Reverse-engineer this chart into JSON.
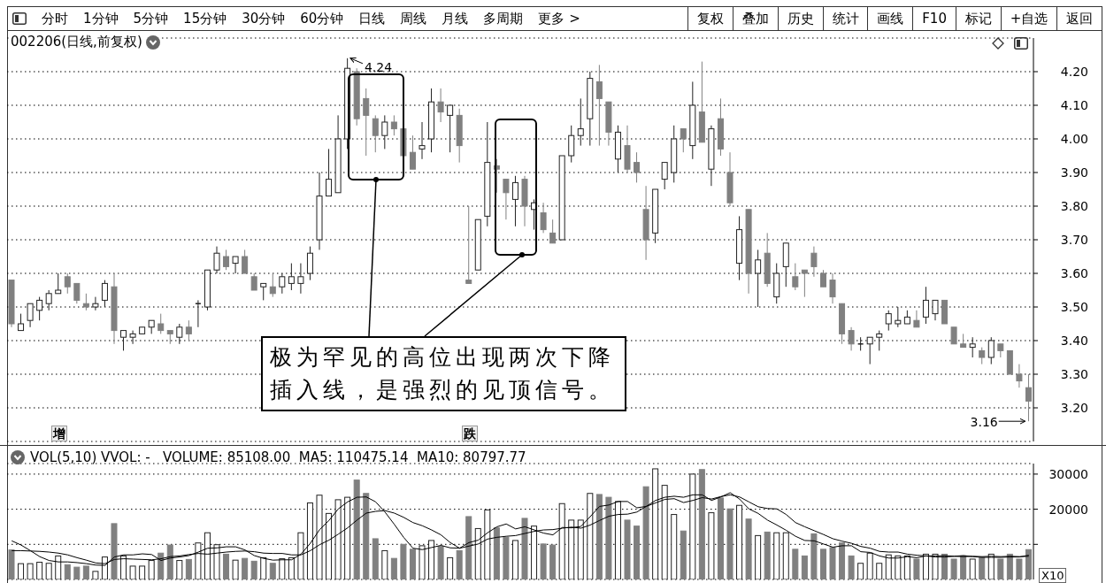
{
  "chart_data": [
    {
      "type": "other",
      "annotations": [
        "分时",
        "1分钟",
        "5分钟",
        "15分钟",
        "30分钟",
        "60分钟",
        "日线",
        "周线",
        "月线",
        "多周期",
        "更多 >"
      ]
    },
    {
      "type": "other",
      "annotations": [
        "复权",
        "叠加",
        "历史",
        "统计",
        "画线",
        "F10",
        "标记",
        "+自选",
        "返回"
      ]
    },
    {
      "type": "candlestick",
      "title": "002206(日线,前复权)",
      "categories": [
        null,
        null,
        null,
        null,
        null,
        null,
        null,
        null,
        null,
        null,
        null,
        null,
        null,
        null,
        null,
        null,
        null,
        null,
        null,
        null,
        null,
        null,
        null,
        null,
        null,
        null,
        null,
        null,
        null,
        null,
        null,
        null,
        null,
        null,
        null,
        null,
        null,
        null,
        null,
        null,
        null,
        null,
        null,
        null,
        null,
        null,
        null,
        null,
        null,
        null,
        null,
        null,
        null,
        null,
        null,
        null,
        null,
        null,
        null,
        null,
        null,
        null,
        null,
        null,
        null,
        null,
        null,
        null,
        null,
        null,
        null,
        null,
        null,
        null,
        null,
        null,
        null,
        null,
        null,
        null,
        null,
        null,
        null,
        null,
        null,
        null,
        null,
        null,
        null,
        null,
        null,
        null,
        null,
        null,
        null,
        null,
        null,
        null,
        null,
        null,
        null,
        null,
        null,
        null,
        null,
        null,
        null,
        null,
        null,
        null
      ],
      "ohlc": [
        [
          3.58,
          3.58,
          3.44,
          3.45
        ],
        [
          3.43,
          3.48,
          3.43,
          3.45
        ],
        [
          3.46,
          3.51,
          3.44,
          3.51
        ],
        [
          3.49,
          3.53,
          3.46,
          3.52
        ],
        [
          3.51,
          3.55,
          3.49,
          3.54
        ],
        [
          3.54,
          3.6,
          3.54,
          3.55
        ],
        [
          3.59,
          3.6,
          3.54,
          3.56
        ],
        [
          3.57,
          3.57,
          3.51,
          3.52
        ],
        [
          3.51,
          3.54,
          3.49,
          3.5
        ],
        [
          3.5,
          3.53,
          3.49,
          3.51
        ],
        [
          3.52,
          3.58,
          3.5,
          3.57
        ],
        [
          3.56,
          3.6,
          3.39,
          3.43
        ],
        [
          3.41,
          3.43,
          3.37,
          3.43
        ],
        [
          3.41,
          3.43,
          3.39,
          3.42
        ],
        [
          3.42,
          3.44,
          3.42,
          3.44
        ],
        [
          3.44,
          3.46,
          3.42,
          3.46
        ],
        [
          3.45,
          3.48,
          3.42,
          3.43
        ],
        [
          3.43,
          3.43,
          3.39,
          3.42
        ],
        [
          3.41,
          3.45,
          3.39,
          3.44
        ],
        [
          3.44,
          3.46,
          3.4,
          3.42
        ],
        [
          3.51,
          3.52,
          3.44,
          3.51
        ],
        [
          3.5,
          3.61,
          3.49,
          3.61
        ],
        [
          3.61,
          3.68,
          3.6,
          3.66
        ],
        [
          3.65,
          3.67,
          3.61,
          3.62
        ],
        [
          3.63,
          3.65,
          3.6,
          3.65
        ],
        [
          3.65,
          3.67,
          3.6,
          3.6
        ],
        [
          3.59,
          3.6,
          3.55,
          3.55
        ],
        [
          3.56,
          3.57,
          3.52,
          3.57
        ],
        [
          3.56,
          3.6,
          3.53,
          3.54
        ],
        [
          3.56,
          3.6,
          3.54,
          3.59
        ],
        [
          3.57,
          3.63,
          3.55,
          3.59
        ],
        [
          3.57,
          3.63,
          3.54,
          3.59
        ],
        [
          3.6,
          3.68,
          3.58,
          3.66
        ],
        [
          3.7,
          3.9,
          3.67,
          3.83
        ],
        [
          3.83,
          3.97,
          3.83,
          3.88
        ],
        [
          3.84,
          4.07,
          3.84,
          4.0
        ],
        [
          4.0,
          4.24,
          3.97,
          4.21
        ],
        [
          4.2,
          4.21,
          4.04,
          4.06
        ],
        [
          4.12,
          4.15,
          3.95,
          4.07
        ],
        [
          4.06,
          4.07,
          3.96,
          4.01
        ],
        [
          4.01,
          4.07,
          3.97,
          4.05
        ],
        [
          4.05,
          4.07,
          4.01,
          4.03
        ],
        [
          4.03,
          4.03,
          3.95,
          3.95
        ],
        [
          3.96,
          4.01,
          3.91,
          3.91
        ],
        [
          3.97,
          4.05,
          3.94,
          3.98
        ],
        [
          4.0,
          4.15,
          3.96,
          4.11
        ],
        [
          4.11,
          4.15,
          4.05,
          4.08
        ],
        [
          4.07,
          4.1,
          3.96,
          4.1
        ],
        [
          4.07,
          4.09,
          3.93,
          3.98
        ],
        [
          3.58,
          3.8,
          3.57,
          3.57
        ],
        [
          3.61,
          3.76,
          3.61,
          3.76
        ],
        [
          3.77,
          4.05,
          3.74,
          3.93
        ],
        [
          3.92,
          3.94,
          3.84,
          3.91
        ],
        [
          3.88,
          3.88,
          3.76,
          3.84
        ],
        [
          3.82,
          3.89,
          3.74,
          3.87
        ],
        [
          3.88,
          3.89,
          3.74,
          3.8
        ],
        [
          3.79,
          3.82,
          3.73,
          3.81
        ],
        [
          3.78,
          3.81,
          3.72,
          3.73
        ],
        [
          3.72,
          3.76,
          3.69,
          3.69
        ],
        [
          3.7,
          3.95,
          3.7,
          3.95
        ],
        [
          3.95,
          4.04,
          3.93,
          4.01
        ],
        [
          4.01,
          4.12,
          3.98,
          4.03
        ],
        [
          4.06,
          4.2,
          3.98,
          4.18
        ],
        [
          4.17,
          4.22,
          3.98,
          4.12
        ],
        [
          4.11,
          4.11,
          3.98,
          4.02
        ],
        [
          3.94,
          4.04,
          3.9,
          4.02
        ],
        [
          3.98,
          4.04,
          3.9,
          3.91
        ],
        [
          3.93,
          3.96,
          3.87,
          3.9
        ],
        [
          3.79,
          3.86,
          3.64,
          3.7
        ],
        [
          3.72,
          3.85,
          3.69,
          3.85
        ],
        [
          3.88,
          3.93,
          3.85,
          3.93
        ],
        [
          3.9,
          4.04,
          3.87,
          4.0
        ],
        [
          4.03,
          4.03,
          3.96,
          4.0
        ],
        [
          3.98,
          4.17,
          3.94,
          4.1
        ],
        [
          4.08,
          4.23,
          3.99,
          3.99
        ],
        [
          3.91,
          4.04,
          3.86,
          4.03
        ],
        [
          4.06,
          4.12,
          3.95,
          3.97
        ],
        [
          3.9,
          3.96,
          3.8,
          3.81
        ],
        [
          3.63,
          3.77,
          3.58,
          3.73
        ],
        [
          3.79,
          3.79,
          3.54,
          3.6
        ],
        [
          3.6,
          3.67,
          3.5,
          3.64
        ],
        [
          3.66,
          3.72,
          3.56,
          3.57
        ],
        [
          3.53,
          3.63,
          3.51,
          3.6
        ],
        [
          3.62,
          3.69,
          3.56,
          3.69
        ],
        [
          3.59,
          3.63,
          3.55,
          3.56
        ],
        [
          3.61,
          3.61,
          3.53,
          3.6
        ],
        [
          3.66,
          3.68,
          3.59,
          3.62
        ],
        [
          3.6,
          3.61,
          3.56,
          3.56
        ],
        [
          3.58,
          3.6,
          3.51,
          3.53
        ],
        [
          3.51,
          3.51,
          3.39,
          3.42
        ],
        [
          3.43,
          3.44,
          3.37,
          3.39
        ],
        [
          3.39,
          3.41,
          3.37,
          3.39
        ],
        [
          3.39,
          3.41,
          3.33,
          3.41
        ],
        [
          3.41,
          3.43,
          3.37,
          3.42
        ],
        [
          3.45,
          3.49,
          3.43,
          3.48
        ],
        [
          3.45,
          3.5,
          3.44,
          3.46
        ],
        [
          3.45,
          3.49,
          3.45,
          3.47
        ],
        [
          3.46,
          3.49,
          3.44,
          3.44
        ],
        [
          3.47,
          3.56,
          3.45,
          3.52
        ],
        [
          3.48,
          3.52,
          3.46,
          3.52
        ],
        [
          3.52,
          3.52,
          3.45,
          3.45
        ],
        [
          3.44,
          3.44,
          3.39,
          3.39
        ],
        [
          3.39,
          3.42,
          3.38,
          3.38
        ],
        [
          3.38,
          3.41,
          3.35,
          3.39
        ],
        [
          3.37,
          3.38,
          3.33,
          3.35
        ],
        [
          3.35,
          3.41,
          3.33,
          3.4
        ],
        [
          3.39,
          3.39,
          3.35,
          3.37
        ],
        [
          3.37,
          3.37,
          3.3,
          3.3
        ],
        [
          3.3,
          3.33,
          3.26,
          3.28
        ],
        [
          3.26,
          3.3,
          3.16,
          3.22
        ]
      ],
      "colors": [
        "#808080",
        "#222222",
        "#222222",
        "#222222",
        "#222222",
        "#222222",
        "#808080",
        "#808080",
        "#808080",
        "#222222",
        "#222222",
        "#808080",
        "#222222",
        "#222222",
        "#222222",
        "#222222",
        "#808080",
        "#808080",
        "#222222",
        "#808080",
        "#222222",
        "#222222",
        "#222222",
        "#808080",
        "#222222",
        "#808080",
        "#808080",
        "#222222",
        "#808080",
        "#222222",
        "#222222",
        "#222222",
        "#222222",
        "#222222",
        "#222222",
        "#222222",
        "#222222",
        "#808080",
        "#808080",
        "#808080",
        "#222222",
        "#808080",
        "#808080",
        "#808080",
        "#222222",
        "#222222",
        "#808080",
        "#222222",
        "#808080",
        "#808080",
        "#222222",
        "#222222",
        "#808080",
        "#808080",
        "#222222",
        "#808080",
        "#222222",
        "#808080",
        "#808080",
        "#222222",
        "#222222",
        "#222222",
        "#222222",
        "#808080",
        "#808080",
        "#222222",
        "#808080",
        "#808080",
        "#808080",
        "#222222",
        "#222222",
        "#222222",
        "#808080",
        "#222222",
        "#808080",
        "#222222",
        "#808080",
        "#808080",
        "#222222",
        "#808080",
        "#222222",
        "#808080",
        "#222222",
        "#222222",
        "#808080",
        "#808080",
        "#808080",
        "#808080",
        "#808080",
        "#808080",
        "#808080",
        "#222222",
        "#222222",
        "#222222",
        "#222222",
        "#222222",
        "#222222",
        "#808080",
        "#222222",
        "#222222",
        "#808080",
        "#808080",
        "#808080",
        "#222222",
        "#808080",
        "#222222",
        "#808080",
        "#808080",
        "#808080",
        "#808080"
      ],
      "ylim": [
        3.1,
        4.3
      ],
      "yticks": [
        {
          "value": 3.2,
          "label": "3.20"
        },
        {
          "value": 3.3,
          "label": "3.30"
        },
        {
          "value": 3.4,
          "label": "3.40"
        },
        {
          "value": 3.5,
          "label": "3.50"
        },
        {
          "value": 3.6,
          "label": "3.60"
        },
        {
          "value": 3.7,
          "label": "3.70"
        },
        {
          "value": 3.8,
          "label": "3.80"
        },
        {
          "value": 3.9,
          "label": "3.90"
        },
        {
          "value": 4.0,
          "label": "4.00"
        },
        {
          "value": 4.1,
          "label": "4.10"
        },
        {
          "value": 4.2,
          "label": "4.20"
        }
      ],
      "grid": "y",
      "tick_labels": "y",
      "annotations": [
        "4.24",
        "极为罕见的高位出现两次下降插入线，是强烈的见顶信号。",
        "增",
        "跌",
        "3.16"
      ]
    },
    {
      "type": "bar",
      "title": "VOL(5,10) VVOL: -   VOLUME: 85108.00  MA5: 110475.14  MA10: 80797.77",
      "ylabel": "X10",
      "categories": [
        null,
        null,
        null,
        null,
        null,
        null,
        null,
        null,
        null,
        null,
        null,
        null,
        null,
        null,
        null,
        null,
        null,
        null,
        null,
        null,
        null,
        null,
        null,
        null,
        null,
        null,
        null,
        null,
        null,
        null,
        null,
        null,
        null,
        null,
        null,
        null,
        null,
        null,
        null,
        null,
        null,
        null,
        null,
        null,
        null,
        null,
        null,
        null,
        null,
        null,
        null,
        null,
        null,
        null,
        null,
        null,
        null,
        null,
        null,
        null,
        null,
        null,
        null,
        null,
        null,
        null,
        null,
        null,
        null,
        null,
        null,
        null,
        null,
        null,
        null,
        null,
        null,
        null,
        null,
        null,
        null,
        null,
        null,
        null,
        null,
        null,
        null,
        null,
        null,
        null,
        null,
        null,
        null,
        null,
        null,
        null,
        null,
        null,
        null,
        null,
        null,
        null,
        null,
        null,
        null,
        null,
        null,
        null,
        null,
        null
      ],
      "series": [
        {
          "values": [
            8400,
            4500,
            4500,
            4900,
            4600,
            6700,
            4200,
            3500,
            3800,
            2300,
            6400,
            15900,
            6700,
            3800,
            3800,
            5400,
            7500,
            9800,
            5400,
            5700,
            10400,
            13300,
            9900,
            7200,
            5500,
            6000,
            5200,
            6200,
            4600,
            5900,
            6200,
            13300,
            21800,
            24000,
            18800,
            22700,
            23400,
            28300,
            24500,
            11600,
            8200,
            6000,
            10000,
            8600,
            9600,
            11100,
            9400,
            6200,
            8200,
            17900,
            14500,
            19800,
            14700,
            12000,
            11100,
            17400,
            15200,
            10100,
            9800,
            21600,
            16900,
            16900,
            24500,
            24200,
            23400,
            22200,
            16900,
            15200,
            26400,
            31500,
            26800,
            18500,
            13800,
            30000,
            31300,
            19000,
            23200,
            20100,
            21100,
            17200,
            12500,
            13500,
            13300,
            13300,
            8600,
            6700,
            13000,
            8600,
            9100,
            10400,
            6700,
            4600,
            7500,
            4600,
            7000,
            6700,
            6700,
            5800,
            7200,
            7200,
            7200,
            5800,
            6700,
            5800,
            6200,
            7200,
            5800,
            7200,
            5800,
            8500
          ],
          "colors": [
            "#808080",
            "#222222",
            "#222222",
            "#222222",
            "#222222",
            "#222222",
            "#808080",
            "#808080",
            "#808080",
            "#222222",
            "#222222",
            "#808080",
            "#222222",
            "#222222",
            "#222222",
            "#222222",
            "#808080",
            "#808080",
            "#222222",
            "#808080",
            "#222222",
            "#222222",
            "#222222",
            "#808080",
            "#222222",
            "#808080",
            "#808080",
            "#222222",
            "#808080",
            "#222222",
            "#222222",
            "#222222",
            "#222222",
            "#222222",
            "#222222",
            "#222222",
            "#222222",
            "#808080",
            "#808080",
            "#808080",
            "#222222",
            "#808080",
            "#808080",
            "#808080",
            "#222222",
            "#222222",
            "#808080",
            "#222222",
            "#808080",
            "#808080",
            "#222222",
            "#222222",
            "#808080",
            "#808080",
            "#222222",
            "#808080",
            "#222222",
            "#808080",
            "#808080",
            "#222222",
            "#222222",
            "#222222",
            "#222222",
            "#808080",
            "#808080",
            "#222222",
            "#808080",
            "#808080",
            "#808080",
            "#222222",
            "#222222",
            "#222222",
            "#808080",
            "#222222",
            "#808080",
            "#222222",
            "#808080",
            "#808080",
            "#222222",
            "#808080",
            "#222222",
            "#808080",
            "#222222",
            "#222222",
            "#808080",
            "#808080",
            "#808080",
            "#808080",
            "#808080",
            "#808080",
            "#808080",
            "#222222",
            "#222222",
            "#222222",
            "#222222",
            "#222222",
            "#222222",
            "#808080",
            "#222222",
            "#222222",
            "#808080",
            "#808080",
            "#808080",
            "#222222",
            "#808080",
            "#222222",
            "#808080",
            "#808080",
            "#808080",
            "#808080"
          ]
        },
        {
          "type": "line",
          "color": "#000000",
          "values": [
            11000,
            9800,
            8200,
            6500,
            5400,
            5000,
            5000,
            4800,
            4500,
            4100,
            4000,
            6400,
            7000,
            7000,
            7300,
            7100,
            5400,
            6100,
            6400,
            6800,
            7800,
            8900,
            9000,
            9300,
            9300,
            8400,
            6800,
            6000,
            5500,
            5600,
            5600,
            7200,
            10300,
            14200,
            16800,
            20100,
            22100,
            23400,
            23500,
            22100,
            19200,
            15700,
            12000,
            8900,
            8500,
            9100,
            9700,
            9000,
            8900,
            10500,
            11200,
            13300,
            15000,
            15800,
            14400,
            15000,
            14100,
            13200,
            12700,
            14800,
            14700,
            15100,
            17900,
            20800,
            21200,
            22200,
            22200,
            20400,
            20800,
            22500,
            23400,
            23700,
            23400,
            24100,
            24100,
            22500,
            23500,
            24700,
            22900,
            20100,
            18800,
            16900,
            15500,
            14000,
            12300,
            11100,
            11000,
            10100,
            9200,
            9600,
            9600,
            7900,
            7700,
            6700,
            6100,
            6100,
            6500,
            6200,
            6700,
            6700,
            6800,
            6600,
            6800,
            6500,
            6300,
            6300,
            6300,
            6400,
            6400,
            6900
          ]
        },
        {
          "type": "line",
          "color": "#000000",
          "values": [
            8200,
            8200,
            8100,
            8000,
            7800,
            7500,
            7000,
            6200,
            5500,
            4700,
            4500,
            5700,
            5900,
            5800,
            5700,
            5600,
            5900,
            6500,
            6700,
            7100,
            7400,
            7200,
            7500,
            7800,
            8000,
            8100,
            7900,
            7500,
            7400,
            7400,
            7000,
            7000,
            8200,
            9900,
            11200,
            12900,
            14700,
            16900,
            18900,
            19400,
            19600,
            18900,
            17700,
            16200,
            15300,
            14100,
            12700,
            10500,
            8900,
            9500,
            10100,
            11500,
            12000,
            12300,
            12500,
            13100,
            13700,
            14100,
            14200,
            14600,
            14900,
            14600,
            15500,
            16800,
            18000,
            18500,
            18600,
            19200,
            20800,
            21800,
            22800,
            23000,
            21900,
            22500,
            23300,
            22900,
            23600,
            24100,
            23500,
            22100,
            20700,
            20200,
            20100,
            18500,
            16200,
            15000,
            13900,
            12800,
            11600,
            10900,
            10300,
            9400,
            8900,
            8000,
            7800,
            7800,
            7200,
            6900,
            6700,
            6400,
            6400,
            6600,
            6500,
            6600,
            6500,
            6600,
            6500,
            6600,
            6500,
            6600
          ]
        }
      ],
      "ylim": [
        0,
        33000
      ],
      "yticks": [
        {
          "value": 10000,
          "label": null
        },
        20000,
        30000
      ],
      "grid": "y",
      "tick_labels": "y"
    }
  ]
}
